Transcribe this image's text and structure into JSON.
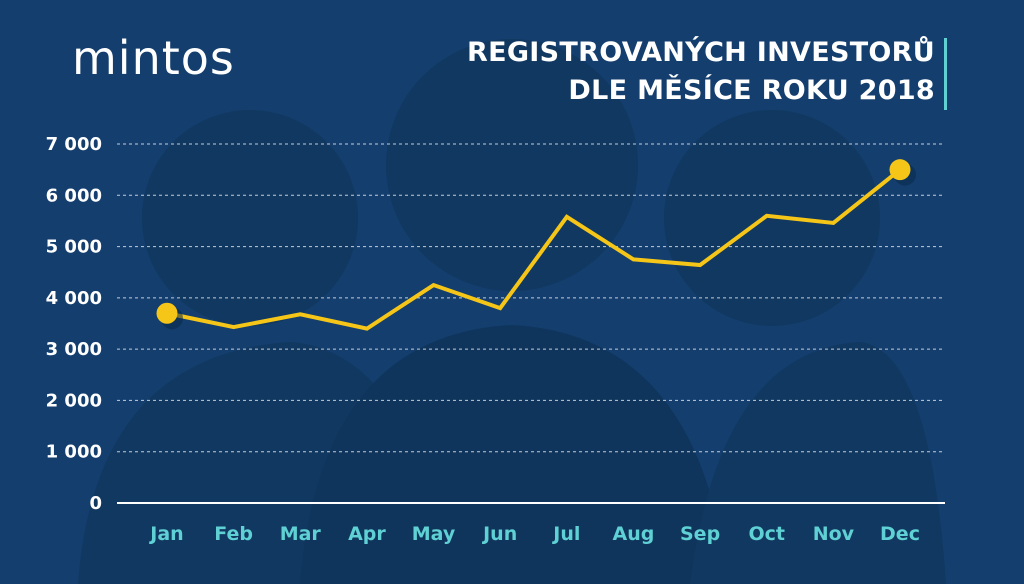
{
  "brand": {
    "logo_text": "mintos"
  },
  "chart_data": {
    "type": "line",
    "title_lines": [
      "REGISTROVANÝCH INVESTORŮ",
      "DLE MĚSÍCE ROKU 2018"
    ],
    "xlabel": "",
    "ylabel": "",
    "categories": [
      "Jan",
      "Feb",
      "Mar",
      "Apr",
      "May",
      "Jun",
      "Jul",
      "Aug",
      "Sep",
      "Oct",
      "Nov",
      "Dec"
    ],
    "series": [
      {
        "values": [
          3700,
          3430,
          3680,
          3400,
          4250,
          3800,
          5580,
          4750,
          4640,
          5600,
          5460,
          6500
        ]
      }
    ],
    "ylim": [
      0,
      7000
    ],
    "yticks": [
      0,
      1000,
      2000,
      3000,
      4000,
      5000,
      6000,
      7000
    ],
    "ytick_labels": [
      "0",
      "1 000",
      "2 000",
      "3 000",
      "4 000",
      "5 000",
      "6 000",
      "7 000"
    ],
    "grid": true,
    "highlight_points": [
      0,
      11
    ],
    "colors": {
      "line": "#f5c518",
      "background": "#133e6e",
      "grid": "#ffffff",
      "xtick": "#5fd0d3",
      "accent_bar": "#5fd0d3"
    }
  }
}
